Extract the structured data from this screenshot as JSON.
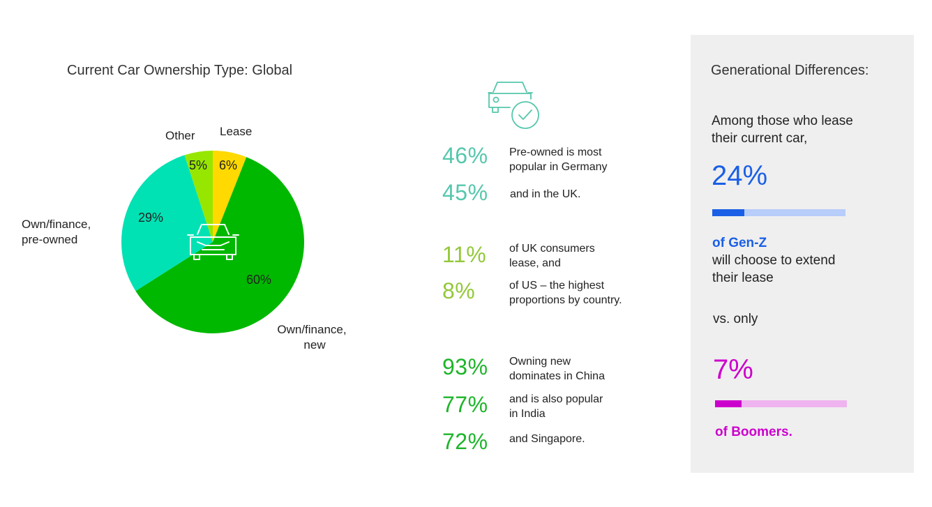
{
  "chart_data": {
    "type": "pie",
    "title": "Current Car Ownership Type: Global",
    "slices": [
      {
        "label": "Lease",
        "value": 6,
        "value_label": "6%",
        "color": "#ffd900"
      },
      {
        "label": "Own/finance, new",
        "value": 60,
        "value_label": "60%",
        "color": "#00b800"
      },
      {
        "label": "Own/finance, pre-owned",
        "value": 29,
        "value_label": "29%",
        "color": "#00e2b4"
      },
      {
        "label": "Other",
        "value": 5,
        "value_label": "5%",
        "color": "#97e600"
      }
    ],
    "center_icon": "car-icon"
  },
  "labels": {
    "own_new_line1": "Own/finance,",
    "own_new_line2": "new",
    "own_pre_line1": "Own/finance,",
    "own_pre_line2": "pre-owned"
  },
  "stats": {
    "icon": "car-check-icon",
    "items": [
      {
        "value": "46%",
        "text1": "Pre-owned is most",
        "text2": "popular in Germany",
        "color": "#56c7ac"
      },
      {
        "value": "45%",
        "text1": "and in the UK.",
        "text2": "",
        "color": "#56c7ac"
      },
      {
        "value": "11%",
        "text1": "of UK consumers",
        "text2": "lease, and",
        "color": "#93c83a"
      },
      {
        "value": "8%",
        "text1": "of US – the highest",
        "text2": "proportions by country.",
        "color": "#93c83a"
      },
      {
        "value": "93%",
        "text1": "Owning new",
        "text2": "dominates in China",
        "color": "#1db52a"
      },
      {
        "value": "77%",
        "text1": "and is also popular",
        "text2": "in India",
        "color": "#1db52a"
      },
      {
        "value": "72%",
        "text1": "and Singapore.",
        "text2": "",
        "color": "#1db52a"
      }
    ]
  },
  "panel": {
    "title": "Generational Differences:",
    "intro1": "Among those who lease",
    "intro2": "their current car,",
    "genz_pct": "24%",
    "genz_value": 24,
    "genz_label": "of Gen-Z",
    "genz_text1": "will choose to extend",
    "genz_text2": "their lease",
    "vs": "vs. only",
    "boomer_pct": "7%",
    "boomer_value": 7,
    "boomer_label": "of Boomers.",
    "colors": {
      "blue": "#1a5fe6",
      "blue_light": "#b7cdfa",
      "purple": "#cc00cc",
      "purple_light": "#efb3ef"
    }
  }
}
